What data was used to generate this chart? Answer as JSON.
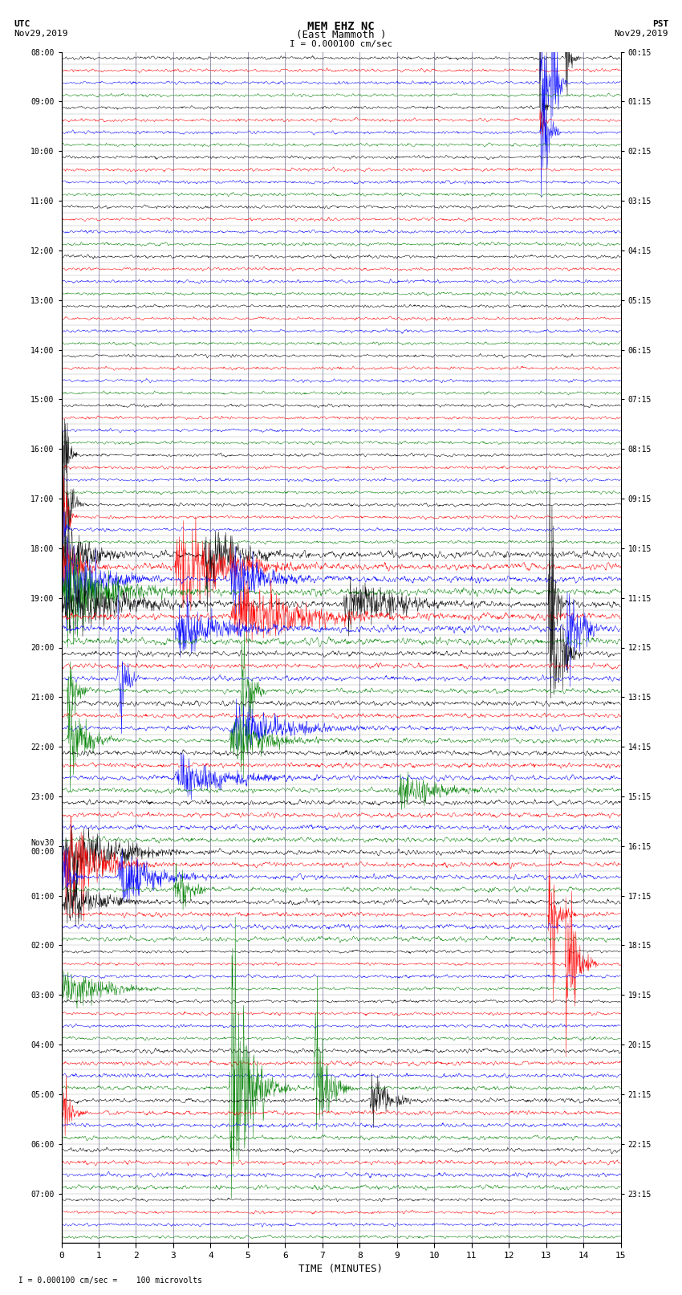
{
  "title_line1": "MEM EHZ NC",
  "title_line2": "(East Mammoth )",
  "scale_text": "I = 0.000100 cm/sec",
  "utc_label": "UTC",
  "utc_date": "Nov29,2019",
  "pst_label": "PST",
  "pst_date": "Nov29,2019",
  "bottom_label": "TIME (MINUTES)",
  "bottom_note": " I = 0.000100 cm/sec =    100 microvolts",
  "fig_width": 8.5,
  "fig_height": 16.13,
  "dpi": 100,
  "utc_hour_labels": [
    "08:00",
    "09:00",
    "10:00",
    "11:00",
    "12:00",
    "13:00",
    "14:00",
    "15:00",
    "16:00",
    "17:00",
    "18:00",
    "19:00",
    "20:00",
    "21:00",
    "22:00",
    "23:00",
    "Nov30\n00:00",
    "01:00",
    "02:00",
    "03:00",
    "04:00",
    "05:00",
    "06:00",
    "07:00"
  ],
  "pst_hour_labels": [
    "00:15",
    "01:15",
    "02:15",
    "03:15",
    "04:15",
    "05:15",
    "06:15",
    "07:15",
    "08:15",
    "09:15",
    "10:15",
    "11:15",
    "12:15",
    "13:15",
    "14:15",
    "15:15",
    "16:15",
    "17:15",
    "18:15",
    "19:15",
    "20:15",
    "21:15",
    "22:15",
    "23:15"
  ],
  "trace_colors": [
    "black",
    "red",
    "blue",
    "green"
  ],
  "n_hours": 24,
  "traces_per_hour": 4,
  "x_min": 0,
  "x_max": 15,
  "x_ticks": [
    0,
    1,
    2,
    3,
    4,
    5,
    6,
    7,
    8,
    9,
    10,
    11,
    12,
    13,
    14,
    15
  ],
  "vertical_line_color": "#4444aa",
  "bg_color": "white"
}
